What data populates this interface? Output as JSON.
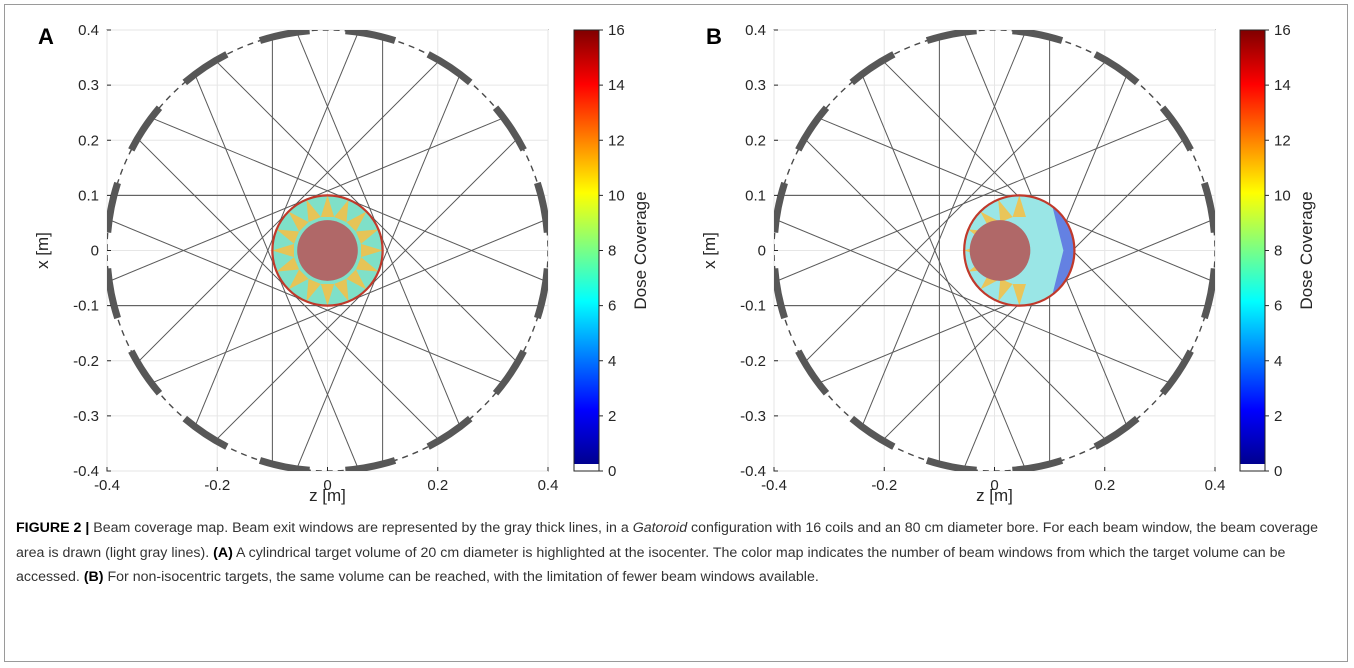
{
  "panels": [
    {
      "letter": "A",
      "xlabel": "z [m]",
      "ylabel": "x [m]",
      "xticks": [
        "-0.4",
        "-0.2",
        "0",
        "0.2",
        "0.4"
      ],
      "yticks": [
        "0.4",
        "0.3",
        "0.2",
        "0.1",
        "0",
        "-0.1",
        "-0.2",
        "-0.3",
        "-0.4"
      ],
      "colorbar_label": "Dose Coverage",
      "colorbar_ticks": [
        "16",
        "14",
        "12",
        "10",
        "8",
        "6",
        "4",
        "2",
        "0"
      ],
      "target_center_z": 0,
      "target_radius_m": 0.1
    },
    {
      "letter": "B",
      "xlabel": "z [m]",
      "ylabel": "x [m]",
      "xticks": [
        "-0.4",
        "-0.2",
        "0",
        "0.2",
        "0.4"
      ],
      "yticks": [
        "0.4",
        "0.3",
        "0.2",
        "0.1",
        "0",
        "-0.1",
        "-0.2",
        "-0.3",
        "-0.4"
      ],
      "colorbar_label": "Dose Coverage",
      "colorbar_ticks": [
        "16",
        "14",
        "12",
        "10",
        "8",
        "6",
        "4",
        "2",
        "0"
      ],
      "target_center_z": 0.045,
      "target_radius_m": 0.1
    }
  ],
  "colors": {
    "window": "#575757",
    "beam_line": "#595959",
    "target_outline": "#c0392b",
    "core": "#b06868"
  },
  "caption": {
    "label": "FIGURE 2 |",
    "text_1": " Beam coverage map. Beam exit windows are represented by the gray thick lines, in a ",
    "italic": "Gatoroid",
    "text_2": " configuration with 16 coils and an 80 cm diameter bore. For each beam window, the beam coverage area is drawn (light gray lines). ",
    "a_label": "(A)",
    "text_3": " A cylindrical target volume of 20 cm diameter is highlighted at the isocenter. The color map indicates the number of beam windows from which the target volume can be accessed. ",
    "b_label": "(B)",
    "text_4": " For non-isocentric targets, the same volume can be reached, with the limitation of fewer beam windows available."
  }
}
